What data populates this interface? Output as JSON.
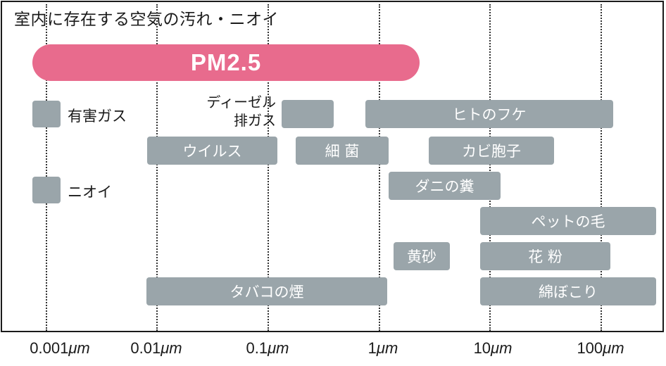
{
  "title": "室内に存在する空気の汚れ・ニオイ",
  "pm25": {
    "label": "PM2.5",
    "color": "#e86b8d"
  },
  "legend": [
    {
      "label": "有害ガス",
      "icon": "gray-square"
    },
    {
      "label": "ニオイ",
      "icon": "gray-square"
    }
  ],
  "diesel_label": [
    "ディーゼル",
    "排ガス"
  ],
  "bars": {
    "diesel": "",
    "hito_no_fuke": "ヒトのフケ",
    "virus": "ウイルス",
    "saikin": "細 菌",
    "kabi": "カビ胞子",
    "dani": "ダニの糞",
    "pet": "ペットの毛",
    "kosa": "黄砂",
    "kafun": "花 粉",
    "tabako": "タバコの煙",
    "watabokori": "綿ぼこり"
  },
  "bar_color": "#9aa5aa",
  "axis": {
    "unit": "μm",
    "ticks": [
      "0.001",
      "0.01",
      "0.1",
      "1",
      "10",
      "100"
    ]
  }
}
